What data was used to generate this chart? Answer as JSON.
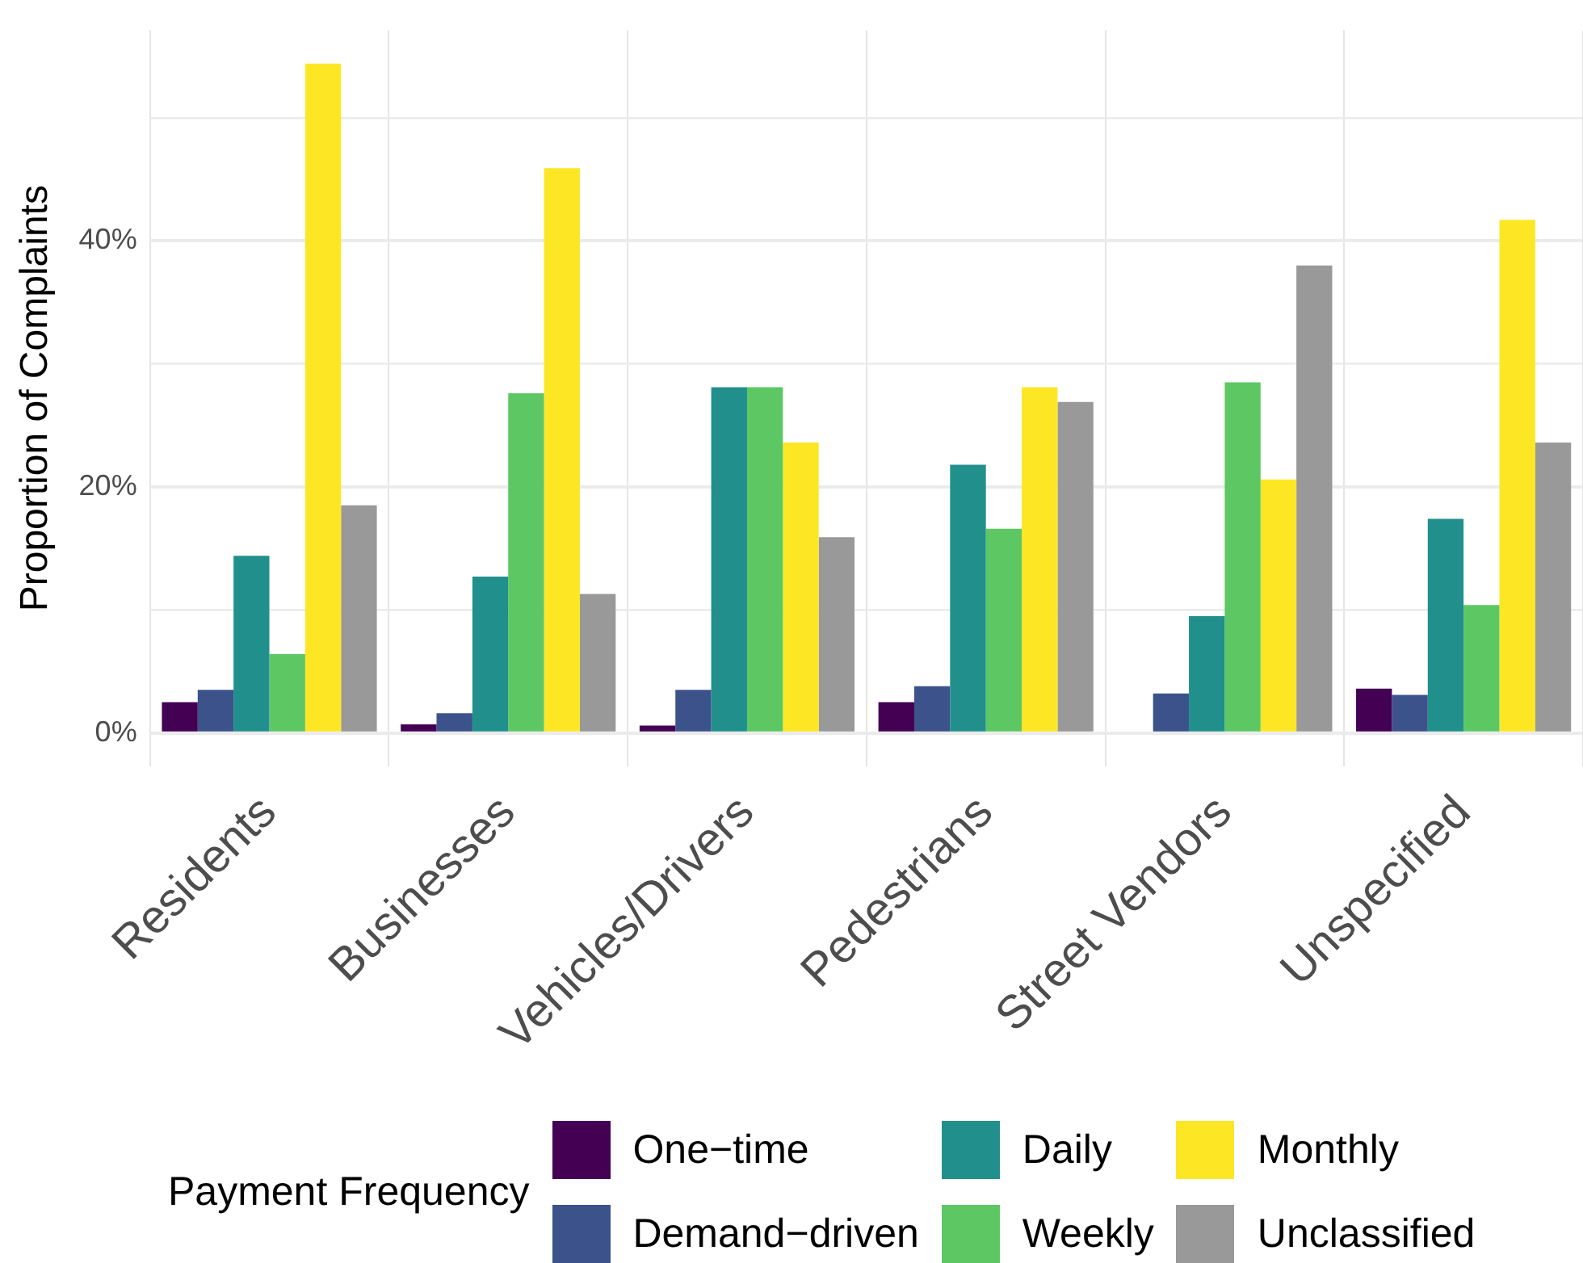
{
  "chart_data": {
    "type": "bar",
    "ylabel": "Proportion of Complaints",
    "legend_title": "Payment Frequency",
    "categories": [
      "Residents",
      "Businesses",
      "Vehicles/Drivers",
      "Pedestrians",
      "Street Vendors",
      "Unspecified"
    ],
    "series": [
      {
        "name": "One−time",
        "color": "#440154",
        "values": [
          2.5,
          0.7,
          0.6,
          2.5,
          null,
          3.6
        ]
      },
      {
        "name": "Demand−driven",
        "color": "#3b528b",
        "values": [
          3.5,
          1.6,
          3.5,
          3.8,
          3.2,
          3.1
        ]
      },
      {
        "name": "Daily",
        "color": "#21908c",
        "values": [
          14.4,
          12.7,
          28.1,
          21.8,
          9.5,
          17.4
        ]
      },
      {
        "name": "Weekly",
        "color": "#5dc863",
        "values": [
          6.4,
          27.6,
          28.1,
          16.6,
          28.5,
          10.4
        ]
      },
      {
        "name": "Monthly",
        "color": "#fde725",
        "values": [
          54.4,
          45.9,
          23.6,
          28.1,
          20.6,
          41.7
        ]
      },
      {
        "name": "Unclassified",
        "color": "#999999",
        "values": [
          18.5,
          11.3,
          15.9,
          26.9,
          38.0,
          23.6
        ]
      }
    ],
    "ylim": [
      -2.7,
      57.1
    ],
    "yticks": [
      {
        "value": 0,
        "label": "0%"
      },
      {
        "value": 10,
        "label": null
      },
      {
        "value": 20,
        "label": "20%"
      },
      {
        "value": 30,
        "label": null
      },
      {
        "value": 40,
        "label": "40%"
      },
      {
        "value": 50,
        "label": null
      }
    ],
    "grid": true,
    "legend": "bottom"
  }
}
